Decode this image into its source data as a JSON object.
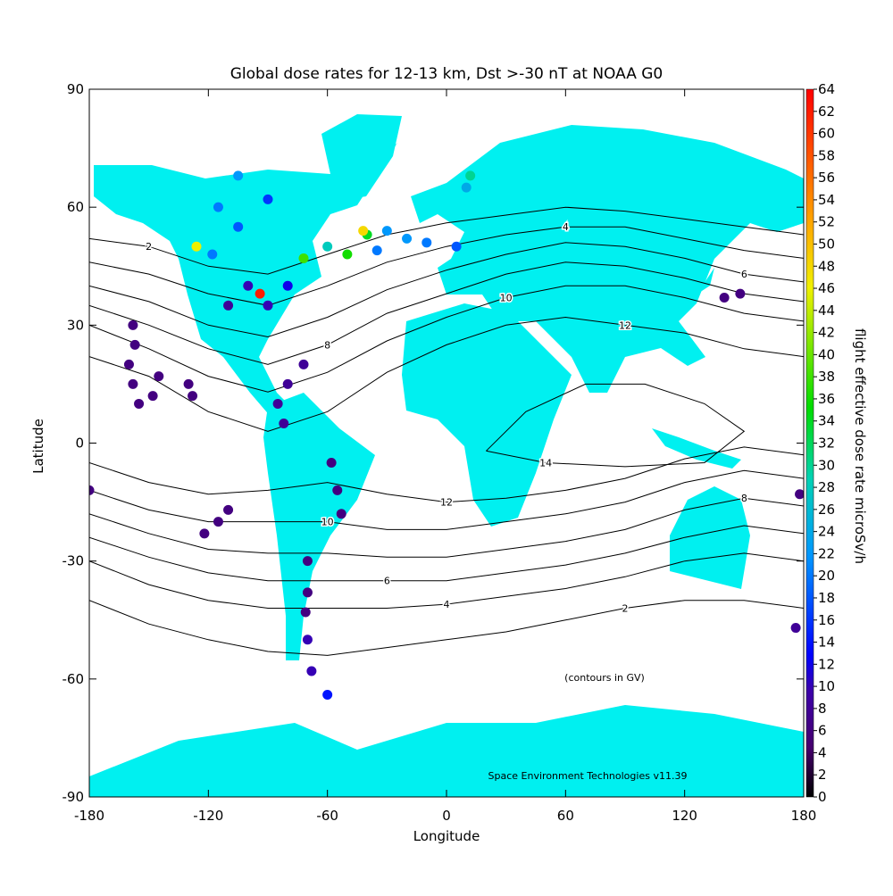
{
  "chart_data": {
    "type": "map-scatter",
    "title": "Global dose rates for 12-13 km, Dst >-30 nT at NOAA G0",
    "x_label": "Longitude",
    "y_label": "Latitude",
    "xlim": [
      -180,
      180
    ],
    "ylim": [
      -90,
      90
    ],
    "xticks": [
      -180,
      -120,
      -60,
      0,
      60,
      120,
      180
    ],
    "yticks": [
      90,
      60,
      30,
      0,
      -30,
      -60,
      -90
    ],
    "colorbar_label": "flight effective dose rate microSv/h",
    "clim": [
      0,
      64
    ],
    "cticks": [
      0,
      2,
      4,
      6,
      8,
      10,
      12,
      14,
      16,
      18,
      20,
      22,
      24,
      26,
      28,
      30,
      32,
      34,
      36,
      38,
      40,
      42,
      44,
      46,
      48,
      50,
      52,
      54,
      56,
      58,
      60,
      62,
      64
    ],
    "land_color": "#00f0f0",
    "contour_color": "#000000",
    "annotations": [
      "(contours in GV)",
      "Space Environment Technologies v11.39"
    ],
    "contours": [
      {
        "level": 2,
        "lon": [
          -180,
          -150,
          -120,
          -90,
          -60,
          -30,
          0,
          30,
          60,
          90,
          120,
          150,
          180
        ],
        "lat": [
          52,
          50,
          45,
          43,
          48,
          53,
          56,
          58,
          60,
          59,
          57,
          55,
          53
        ]
      },
      {
        "level": 4,
        "lon": [
          -180,
          -150,
          -120,
          -90,
          -60,
          -30,
          0,
          30,
          60,
          90,
          120,
          150,
          180
        ],
        "lat": [
          46,
          43,
          38,
          35,
          40,
          46,
          50,
          53,
          55,
          55,
          52,
          49,
          47
        ]
      },
      {
        "level": 6,
        "lon": [
          -180,
          -150,
          -120,
          -90,
          -60,
          -30,
          0,
          30,
          60,
          90,
          120,
          150,
          180
        ],
        "lat": [
          40,
          36,
          30,
          27,
          32,
          39,
          44,
          48,
          51,
          50,
          47,
          43,
          41
        ]
      },
      {
        "level": 8,
        "lon": [
          -180,
          -150,
          -120,
          -90,
          -60,
          -30,
          0,
          30,
          60,
          90,
          120,
          150,
          180
        ],
        "lat": [
          35,
          30,
          24,
          20,
          25,
          33,
          38,
          43,
          46,
          45,
          42,
          38,
          36
        ]
      },
      {
        "level": 10,
        "lon": [
          -180,
          -150,
          -120,
          -90,
          -60,
          -30,
          0,
          30,
          60,
          90,
          120,
          150,
          180
        ],
        "lat": [
          30,
          24,
          17,
          13,
          18,
          26,
          32,
          37,
          40,
          40,
          37,
          33,
          31
        ]
      },
      {
        "level": 12,
        "lon": [
          -180,
          -150,
          -120,
          -90,
          -60,
          -30,
          0,
          30,
          60,
          90,
          120,
          150,
          180
        ],
        "lat": [
          22,
          17,
          8,
          3,
          8,
          18,
          25,
          30,
          32,
          30,
          28,
          24,
          22
        ]
      },
      {
        "level": 14,
        "lon": [
          20,
          40,
          70,
          100,
          130,
          150,
          130,
          90,
          50,
          20
        ],
        "lat": [
          -2,
          8,
          15,
          15,
          10,
          3,
          -5,
          -6,
          -5,
          -2
        ]
      },
      {
        "level": 12,
        "lon": [
          -180,
          -150,
          -120,
          -90,
          -60,
          -30,
          0,
          30,
          60,
          90,
          120,
          150,
          180
        ],
        "lat": [
          -5,
          -10,
          -13,
          -12,
          -10,
          -13,
          -15,
          -14,
          -12,
          -9,
          -4,
          -1,
          -3
        ]
      },
      {
        "level": 10,
        "lon": [
          -180,
          -150,
          -120,
          -90,
          -60,
          -30,
          0,
          30,
          60,
          90,
          120,
          150,
          180
        ],
        "lat": [
          -12,
          -17,
          -20,
          -20,
          -20,
          -22,
          -22,
          -20,
          -18,
          -15,
          -10,
          -7,
          -9
        ]
      },
      {
        "level": 8,
        "lon": [
          -180,
          -150,
          -120,
          -90,
          -60,
          -30,
          0,
          30,
          60,
          90,
          120,
          150,
          180
        ],
        "lat": [
          -18,
          -23,
          -27,
          -28,
          -28,
          -29,
          -29,
          -27,
          -25,
          -22,
          -17,
          -14,
          -16
        ]
      },
      {
        "level": 6,
        "lon": [
          -180,
          -150,
          -120,
          -90,
          -60,
          -30,
          0,
          30,
          60,
          90,
          120,
          150,
          180
        ],
        "lat": [
          -24,
          -29,
          -33,
          -35,
          -35,
          -35,
          -35,
          -33,
          -31,
          -28,
          -24,
          -21,
          -23
        ]
      },
      {
        "level": 4,
        "lon": [
          -180,
          -150,
          -120,
          -90,
          -60,
          -30,
          0,
          30,
          60,
          90,
          120,
          150,
          180
        ],
        "lat": [
          -30,
          -36,
          -40,
          -42,
          -42,
          -42,
          -41,
          -39,
          -37,
          -34,
          -30,
          -28,
          -30
        ]
      },
      {
        "level": 2,
        "lon": [
          -180,
          -150,
          -120,
          -90,
          -60,
          -30,
          0,
          30,
          60,
          90,
          120,
          150,
          180
        ],
        "lat": [
          -40,
          -46,
          -50,
          -53,
          -54,
          -52,
          -50,
          -48,
          -45,
          -42,
          -40,
          -40,
          -42
        ]
      }
    ],
    "points": {
      "lon": [
        -158,
        -157,
        -160,
        -158,
        -155,
        -145,
        -148,
        -130,
        -128,
        -122,
        -115,
        -110,
        -180,
        178,
        176,
        -58,
        -55,
        -53,
        -70,
        -70,
        -71,
        -70,
        -68,
        -60,
        -85,
        -82,
        -80,
        -72,
        -100,
        -110,
        -90,
        -80,
        -118,
        -105,
        -90,
        -115,
        -105,
        -60,
        -40,
        -30,
        -20,
        -10,
        5,
        -50,
        -35,
        10,
        12,
        140,
        148,
        -94,
        -42,
        -72,
        -126
      ],
      "lat": [
        30,
        25,
        20,
        15,
        10,
        17,
        12,
        15,
        12,
        -23,
        -20,
        -17,
        -12,
        -13,
        -47,
        -5,
        -12,
        -18,
        -30,
        -38,
        -43,
        -50,
        -58,
        -64,
        10,
        5,
        15,
        20,
        40,
        35,
        35,
        40,
        48,
        55,
        62,
        60,
        68,
        50,
        53,
        54,
        52,
        51,
        50,
        48,
        49,
        65,
        68,
        37,
        38,
        38,
        54,
        47,
        50
      ],
      "dose": [
        6,
        6,
        6,
        6,
        6,
        6,
        6,
        6,
        6,
        6,
        6,
        6,
        6,
        6,
        8,
        6,
        6,
        6,
        6,
        6,
        6,
        10,
        10,
        14,
        8,
        8,
        8,
        8,
        10,
        8,
        10,
        12,
        20,
        18,
        16,
        20,
        22,
        28,
        34,
        22,
        22,
        20,
        18,
        36,
        20,
        24,
        30,
        6,
        6,
        62,
        48,
        38,
        46
      ]
    }
  }
}
